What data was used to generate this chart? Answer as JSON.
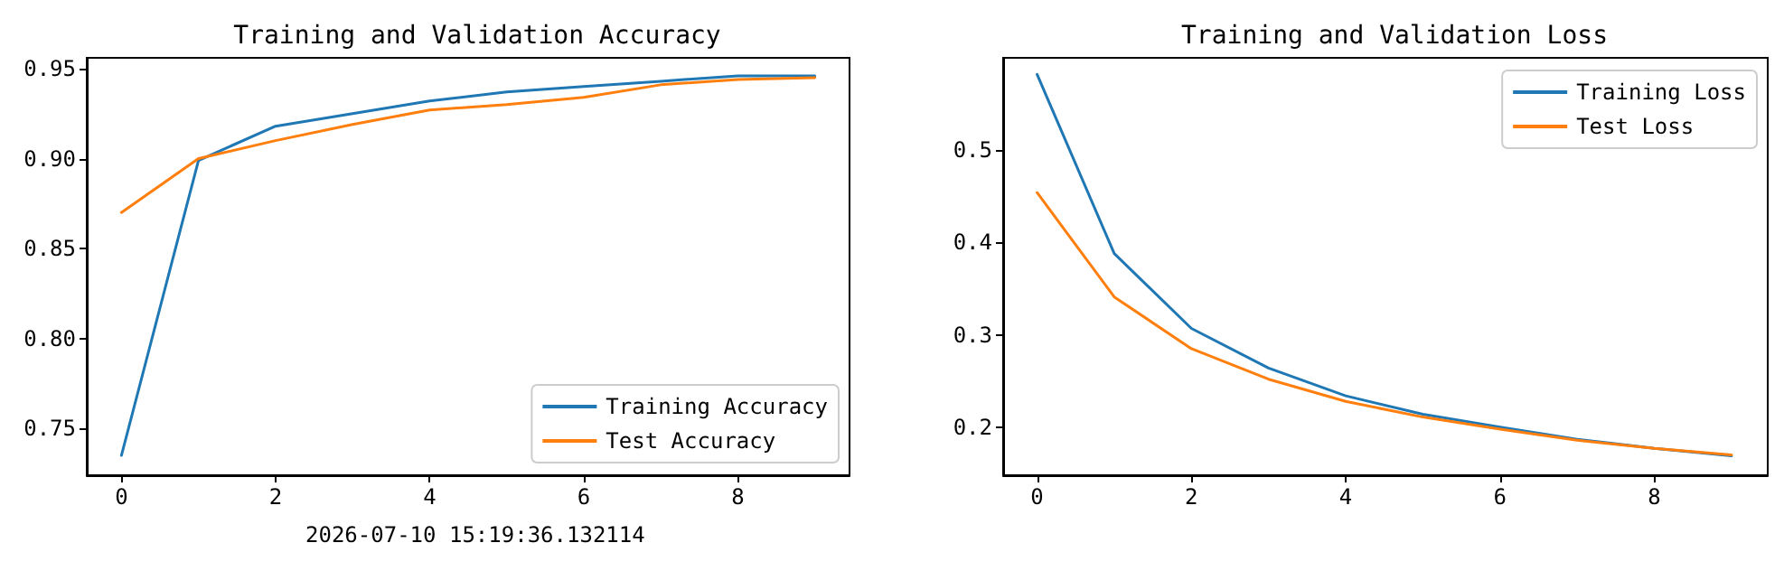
{
  "chart_data": [
    {
      "type": "line",
      "title": "Training and Validation Accuracy",
      "x": [
        0,
        1,
        2,
        3,
        4,
        5,
        6,
        7,
        8,
        9
      ],
      "xlim": [
        -0.45,
        9.45
      ],
      "xticks": [
        0,
        2,
        4,
        6,
        8
      ],
      "ylim": [
        0.724,
        0.956
      ],
      "yticks": [
        0.75,
        {
          "value": 0.8,
          "label": "0.80"
        },
        {
          "value": 0.85,
          "label": "0.85"
        },
        {
          "value": 0.9,
          "label": "0.90"
        },
        0.95
      ],
      "grid": false,
      "legend": "bottom right",
      "marker": "none",
      "line_style": "solid",
      "annotations": [
        "2026-07-10 15:19:36.132114"
      ],
      "series": [
        {
          "name": "Training Accuracy",
          "color": "#1f77b4",
          "values": [
            0.735,
            0.899,
            0.918,
            0.925,
            0.932,
            0.937,
            0.94,
            0.943,
            0.946,
            0.946
          ]
        },
        {
          "name": "Test Accuracy",
          "color": "#ff7f0e",
          "values": [
            0.87,
            0.9,
            0.91,
            0.919,
            0.927,
            0.93,
            0.934,
            0.941,
            0.944,
            0.945
          ]
        }
      ]
    },
    {
      "type": "line",
      "title": "Training and Validation Loss",
      "x": [
        0,
        1,
        2,
        3,
        4,
        5,
        6,
        7,
        8,
        9
      ],
      "xlim": [
        -0.44,
        9.47
      ],
      "xticks": [
        0,
        2,
        4,
        6,
        8
      ],
      "ylim": [
        0.148,
        0.6
      ],
      "yticks": [
        0.2,
        0.3,
        0.4,
        0.5
      ],
      "grid": false,
      "legend": "top right",
      "marker": "none",
      "line_style": "solid",
      "series": [
        {
          "name": "Training Loss",
          "color": "#1f77b4",
          "values": [
            0.582,
            0.388,
            0.307,
            0.264,
            0.234,
            0.214,
            0.2,
            0.187,
            0.177,
            0.169
          ]
        },
        {
          "name": "Test Loss",
          "color": "#ff7f0e",
          "values": [
            0.454,
            0.341,
            0.285,
            0.252,
            0.228,
            0.211,
            0.198,
            0.186,
            0.177,
            0.17
          ]
        }
      ]
    }
  ]
}
